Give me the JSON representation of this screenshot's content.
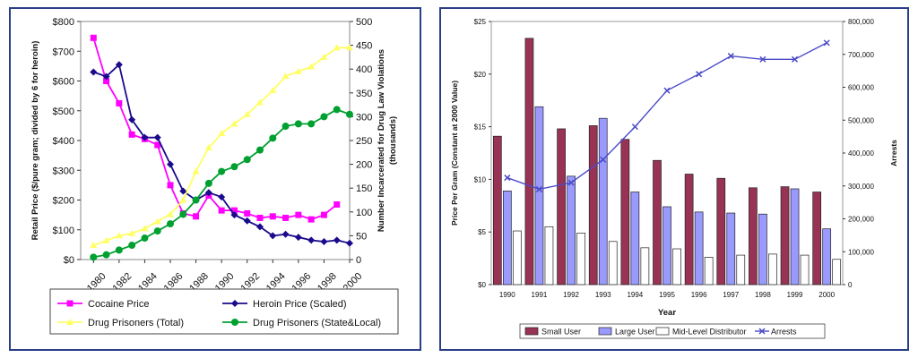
{
  "chart_data": [
    {
      "type": "line",
      "title": "",
      "x": [
        1980,
        1981,
        1982,
        1983,
        1984,
        1985,
        1986,
        1987,
        1988,
        1989,
        1990,
        1991,
        1992,
        1993,
        1994,
        1995,
        1996,
        1997,
        1998,
        1999,
        2000
      ],
      "x_tick_labels": [
        "1980",
        "1982",
        "1984",
        "1986",
        "1988",
        "1990",
        "1992",
        "1994",
        "1996",
        "1998",
        "2000"
      ],
      "ylabel_left": "Retail Price ($/pure gram; divided by 6 for heroin)",
      "ylim_left": [
        0,
        800
      ],
      "y_ticks_left": [
        "$0",
        "$100",
        "$200",
        "$300",
        "$400",
        "$500",
        "$600",
        "$700",
        "$800"
      ],
      "ylabel_right": "Number Incarcerated for Drug Law Violations (thousands)",
      "ylim_right": [
        0,
        500
      ],
      "y_ticks_right": [
        "0",
        "50",
        "100",
        "150",
        "200",
        "250",
        "300",
        "350",
        "400",
        "450",
        "500"
      ],
      "grid": false,
      "legend_position": "bottom",
      "series": [
        {
          "name": "Cocaine Price",
          "axis": "left",
          "color": "#ff00ff",
          "marker": "square",
          "values": [
            745,
            600,
            525,
            420,
            405,
            385,
            250,
            155,
            145,
            215,
            165,
            165,
            155,
            140,
            145,
            140,
            150,
            135,
            150,
            185,
            null
          ]
        },
        {
          "name": "Heroin Price (Scaled)",
          "axis": "left",
          "color": "#1a0a8c",
          "marker": "diamond",
          "values": [
            630,
            615,
            655,
            470,
            410,
            410,
            320,
            230,
            200,
            225,
            210,
            150,
            130,
            110,
            80,
            85,
            75,
            65,
            60,
            65,
            55
          ]
        },
        {
          "name": "Drug Prisoners (Total)",
          "axis": "right",
          "color": "#ffff66",
          "marker": "triangle",
          "values": [
            30,
            40,
            50,
            55,
            65,
            80,
            95,
            125,
            185,
            235,
            265,
            285,
            305,
            330,
            355,
            385,
            395,
            405,
            425,
            445,
            445
          ]
        },
        {
          "name": "Drug Prisoners (State&Local)",
          "axis": "right",
          "color": "#00a030",
          "marker": "circle",
          "values": [
            5,
            10,
            20,
            30,
            45,
            60,
            75,
            95,
            125,
            160,
            185,
            195,
            210,
            230,
            255,
            280,
            285,
            285,
            300,
            315,
            305
          ]
        }
      ]
    },
    {
      "type": "bar",
      "title": "",
      "categories": [
        "1990",
        "1991",
        "1992",
        "1993",
        "1994",
        "1995",
        "1996",
        "1997",
        "1998",
        "1999",
        "2000"
      ],
      "xlabel": "Year",
      "ylabel_left": "Price Per Gram (Constant at 2000 Value)",
      "ylim_left": [
        0,
        25
      ],
      "y_ticks_left": [
        "$0",
        "$5",
        "$10",
        "$15",
        "$20",
        "$25"
      ],
      "ylabel_right": "Arrests",
      "ylim_right": [
        0,
        800000
      ],
      "y_ticks_right": [
        "0",
        "100,000",
        "200,000",
        "300,000",
        "400,000",
        "500,000",
        "600,000",
        "700,000",
        "800,000"
      ],
      "grid": false,
      "legend_position": "bottom",
      "series": [
        {
          "name": "Small User",
          "axis": "left",
          "color": "#993355",
          "values": [
            14.1,
            23.4,
            14.8,
            15.1,
            13.8,
            11.8,
            10.5,
            10.1,
            9.2,
            9.3,
            8.8
          ]
        },
        {
          "name": "Large User",
          "axis": "left",
          "color": "#9999ff",
          "values": [
            8.9,
            16.9,
            10.3,
            15.8,
            8.8,
            7.4,
            6.9,
            6.8,
            6.7,
            9.1,
            5.3
          ]
        },
        {
          "name": "Mid-Level Distributor",
          "axis": "left",
          "color": "#ffffff",
          "values": [
            5.1,
            5.5,
            4.9,
            4.1,
            3.5,
            3.4,
            2.6,
            2.8,
            2.9,
            2.8,
            2.4
          ]
        },
        {
          "name": "Arrests",
          "axis": "right",
          "type": "line",
          "color": "#4a4ac8",
          "marker": "x",
          "values": [
            325000,
            290000,
            310000,
            380000,
            480000,
            590000,
            640000,
            695000,
            685000,
            685000,
            735000
          ]
        }
      ]
    }
  ]
}
